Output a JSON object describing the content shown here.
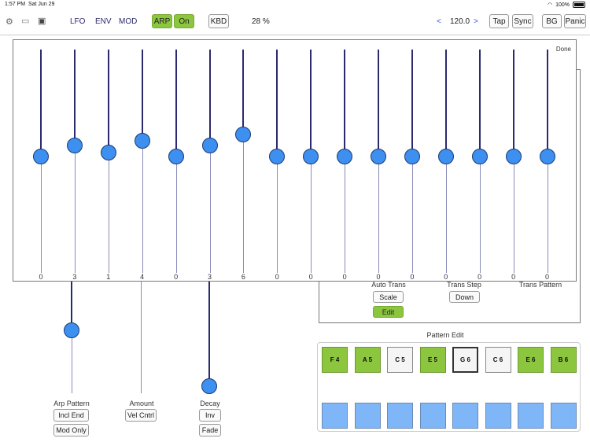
{
  "status_bar": {
    "time": "1:57 PM",
    "date": "Sat Jun 29",
    "battery": "100%"
  },
  "toolbar": {
    "lfo": "LFO",
    "env": "ENV",
    "mod": "MOD",
    "arp": "ARP",
    "on": "On",
    "kbd": "KBD",
    "percent": "28 %",
    "prev": "<",
    "tempo": "120.0",
    "next": ">",
    "tap": "Tap",
    "sync": "Sync",
    "bg": "BG",
    "panic": "Panic"
  },
  "arp_panel": {
    "done": "Done",
    "step_values": [
      "0",
      "3",
      "1",
      "4",
      "0",
      "3",
      "6",
      "0",
      "0",
      "0",
      "0",
      "0",
      "0",
      "0",
      "0",
      "0"
    ],
    "step_levels": [
      0.52,
      0.57,
      0.54,
      0.59,
      0.52,
      0.57,
      0.62,
      0.52,
      0.52,
      0.52,
      0.52,
      0.52,
      0.52,
      0.52,
      0.52,
      0.52
    ]
  },
  "trans": {
    "auto_trans": "Auto Trans",
    "scale": "Scale",
    "edit": "Edit",
    "trans_step": "Trans Step",
    "down": "Down",
    "trans_pattern": "Trans Pattern"
  },
  "bottom_controls": {
    "arp_pattern": "Arp Pattern",
    "incl_end": "Incl End",
    "mod_only": "Mod Only",
    "amount": "Amount",
    "vel_cntrl": "Vel Cntrl",
    "decay": "Decay",
    "inv": "Inv",
    "fade": "Fade"
  },
  "pattern_edit": {
    "title": "Pattern Edit",
    "notes": [
      "F 4",
      "A 5",
      "C 5",
      "E 5",
      "G 6",
      "C 6",
      "E 6",
      "B 6"
    ]
  }
}
